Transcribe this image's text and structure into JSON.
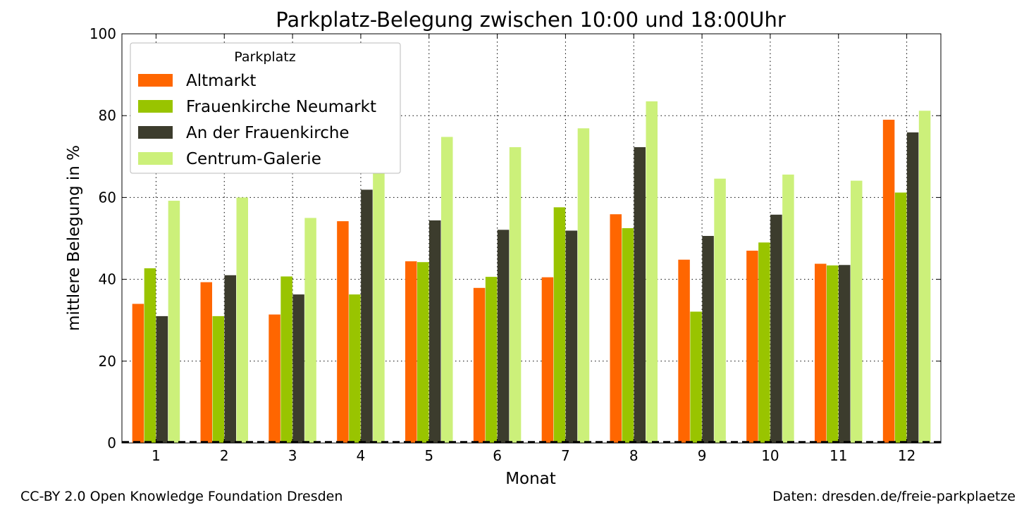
{
  "chart_data": {
    "type": "bar",
    "title": "Parkplatz-Belegung zwischen 10:00 und 18:00Uhr",
    "xlabel": "Monat",
    "ylabel": "mittlere Belegung in %",
    "ylim": [
      0,
      100
    ],
    "yticks": [
      0,
      20,
      40,
      60,
      80,
      100
    ],
    "categories": [
      "1",
      "2",
      "3",
      "4",
      "5",
      "6",
      "7",
      "8",
      "9",
      "10",
      "11",
      "12"
    ],
    "grid": true,
    "legend_title": "Parkplatz",
    "legend_position": "top-left",
    "series": [
      {
        "name": "Altmarkt",
        "color": "#ff6600",
        "values": [
          34.0,
          39.3,
          31.4,
          54.2,
          44.4,
          37.9,
          40.5,
          55.9,
          44.8,
          47.0,
          43.8,
          79.0
        ]
      },
      {
        "name": "Frauenkirche Neumarkt",
        "color": "#99c400",
        "values": [
          42.7,
          31.0,
          40.7,
          36.3,
          44.2,
          40.6,
          57.6,
          52.5,
          32.1,
          49.0,
          43.4,
          61.2
        ]
      },
      {
        "name": "An der Frauenkirche",
        "color": "#3c3c2d",
        "values": [
          31.0,
          41.0,
          36.3,
          61.9,
          54.4,
          52.1,
          51.9,
          72.3,
          50.6,
          55.8,
          43.5,
          75.9
        ]
      },
      {
        "name": "Centrum-Galerie",
        "color": "#ccf07a",
        "values": [
          59.2,
          60.0,
          55.0,
          69.1,
          74.8,
          72.3,
          76.9,
          83.5,
          64.6,
          65.6,
          64.1,
          81.2
        ]
      }
    ]
  },
  "footer": {
    "license": "CC-BY 2.0 Open Knowledge Foundation Dresden",
    "source": "Daten: dresden.de/freie-parkplaetze"
  }
}
